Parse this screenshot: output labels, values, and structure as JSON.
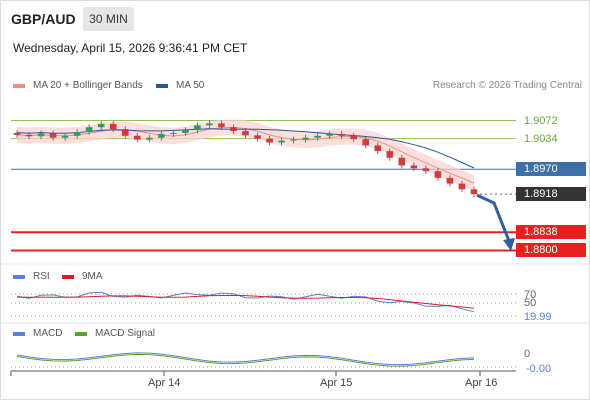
{
  "header": {
    "symbol": "GBP/AUD",
    "timeframe": "30 MIN",
    "datetime": "Wednesday, April 15, 2026 9:36:41 PM CET"
  },
  "legend": {
    "ma20": "MA 20 + Bollinger Bands",
    "ma50": "MA 50",
    "research": "Research © 2026 Trading Central"
  },
  "levels": [
    {
      "value": "1.9072",
      "type": "resistance",
      "color": "#8fc54a"
    },
    {
      "value": "1.9034",
      "type": "resistance",
      "color": "#8fc54a"
    },
    {
      "value": "1.8970",
      "type": "pivot",
      "color": "#3f6fa8"
    },
    {
      "value": "1.8918",
      "type": "last",
      "color": "#333333"
    },
    {
      "value": "1.8838",
      "type": "target",
      "color": "#e8201f"
    },
    {
      "value": "1.8800",
      "type": "target",
      "color": "#e8201f"
    }
  ],
  "rsi_panel": {
    "legend_rsi": "RSI",
    "legend_ma": "9MA",
    "tick_70": "70",
    "tick_50": "50",
    "value": "19.99"
  },
  "macd_panel": {
    "legend_macd": "MACD",
    "legend_signal": "MACD Signal",
    "tick_0": "0",
    "value": "-0.00"
  },
  "xaxis": [
    "Apr 14",
    "Apr 15",
    "Apr 16"
  ],
  "colors": {
    "bullish": "#2e9e5e",
    "bearish": "#d33a3a",
    "band_fill": "#fbd2cf",
    "ma20": "#f08c86",
    "ma50": "#2a5599",
    "arrow": "#2f5d9e",
    "rsi": "#5a7fd4",
    "rsi_ma": "#d62020",
    "macd": "#5a7fd4",
    "macd_signal": "#5aa02a"
  },
  "chart_data": {
    "type": "line",
    "title": "GBP/AUD 30 MIN",
    "ylim": [
      1.878,
      1.9115
    ],
    "x_ticks": [
      "Apr 14",
      "Apr 15",
      "Apr 16"
    ],
    "price_close_approx": [
      1.9042,
      1.9039,
      1.9045,
      1.9036,
      1.904,
      1.9048,
      1.9058,
      1.9065,
      1.9054,
      1.904,
      1.9032,
      1.9036,
      1.9044,
      1.9046,
      1.9052,
      1.9062,
      1.9066,
      1.9058,
      1.905,
      1.9041,
      1.9034,
      1.9026,
      1.903,
      1.9032,
      1.9036,
      1.904,
      1.9044,
      1.904,
      1.9033,
      1.902,
      1.9008,
      1.8994,
      1.8978,
      1.8972,
      1.8966,
      1.8952,
      1.894,
      1.8928,
      1.8918
    ],
    "support_resistance": [
      1.9072,
      1.9034,
      1.897,
      1.8838,
      1.88
    ],
    "last_price": 1.8918,
    "rsi_last": 19.99,
    "macd_last": -0.0
  }
}
